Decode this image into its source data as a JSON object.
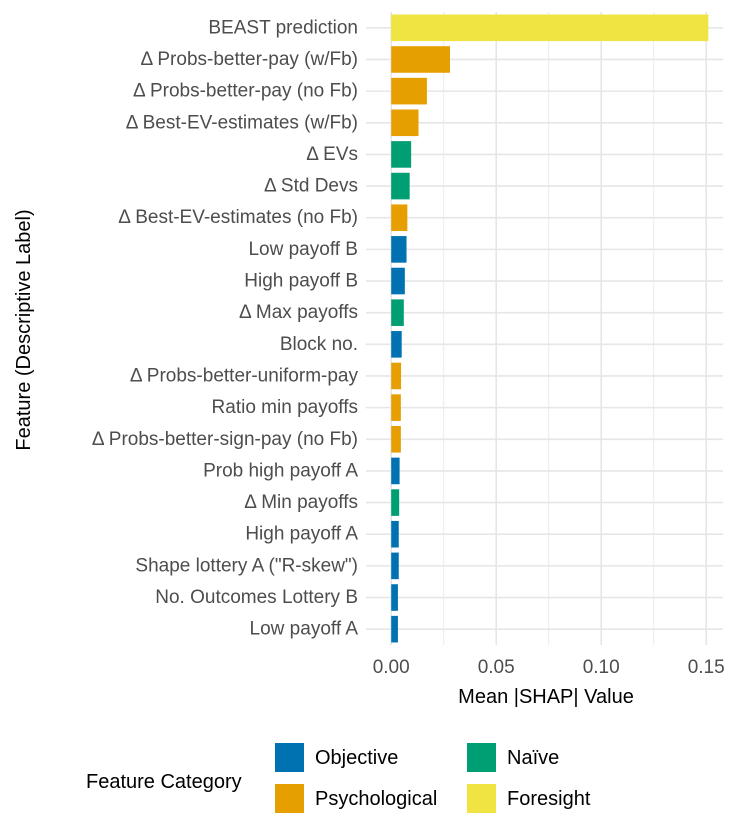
{
  "chart_data": {
    "type": "bar",
    "orientation": "horizontal",
    "xlabel": "Mean |SHAP| Value",
    "ylabel": "Feature (Descriptive Label)",
    "xlim": [
      -0.012,
      0.158
    ],
    "x_ticks": [
      0.0,
      0.05,
      0.1,
      0.15
    ],
    "x_tick_labels": [
      "0.00",
      "0.05",
      "0.10",
      "0.15"
    ],
    "grid": true,
    "legend_position": "bottom",
    "legend_title": "Feature Category",
    "categories_colors": {
      "Objective": "#0072B2",
      "Psychological": "#E69F00",
      "Naïve": "#009E73",
      "Foresight": "#F0E442"
    },
    "legend_order": [
      "Objective",
      "Psychological",
      "Naïve",
      "Foresight"
    ],
    "bars": [
      {
        "label": "BEAST prediction",
        "value": 0.151,
        "category": "Foresight"
      },
      {
        "label": "Δ Probs-better-pay (w/Fb)",
        "value": 0.028,
        "category": "Psychological"
      },
      {
        "label": "Δ Probs-better-pay (no Fb)",
        "value": 0.017,
        "category": "Psychological"
      },
      {
        "label": "Δ Best-EV-estimates (w/Fb)",
        "value": 0.013,
        "category": "Psychological"
      },
      {
        "label": "Δ EVs",
        "value": 0.0095,
        "category": "Naïve"
      },
      {
        "label": "Δ Std Devs",
        "value": 0.0088,
        "category": "Naïve"
      },
      {
        "label": "Δ Best-EV-estimates (no Fb)",
        "value": 0.0077,
        "category": "Psychological"
      },
      {
        "label": "Low payoff B",
        "value": 0.0073,
        "category": "Objective"
      },
      {
        "label": "High payoff B",
        "value": 0.0065,
        "category": "Objective"
      },
      {
        "label": "Δ Max payoffs",
        "value": 0.006,
        "category": "Naïve"
      },
      {
        "label": "Block no.",
        "value": 0.005,
        "category": "Objective"
      },
      {
        "label": "Δ Probs-better-uniform-pay",
        "value": 0.0047,
        "category": "Psychological"
      },
      {
        "label": "Ratio min payoffs",
        "value": 0.0046,
        "category": "Psychological"
      },
      {
        "label": "Δ Probs-better-sign-pay (no Fb)",
        "value": 0.0046,
        "category": "Psychological"
      },
      {
        "label": "Prob high payoff A",
        "value": 0.004,
        "category": "Objective"
      },
      {
        "label": "Δ Min payoffs",
        "value": 0.0038,
        "category": "Naïve"
      },
      {
        "label": "High payoff A",
        "value": 0.0036,
        "category": "Objective"
      },
      {
        "label": "Shape lottery A (\"R-skew\")",
        "value": 0.0036,
        "category": "Objective"
      },
      {
        "label": "No. Outcomes Lottery B",
        "value": 0.0032,
        "category": "Objective"
      },
      {
        "label": "Low payoff A",
        "value": 0.0032,
        "category": "Objective"
      }
    ]
  }
}
